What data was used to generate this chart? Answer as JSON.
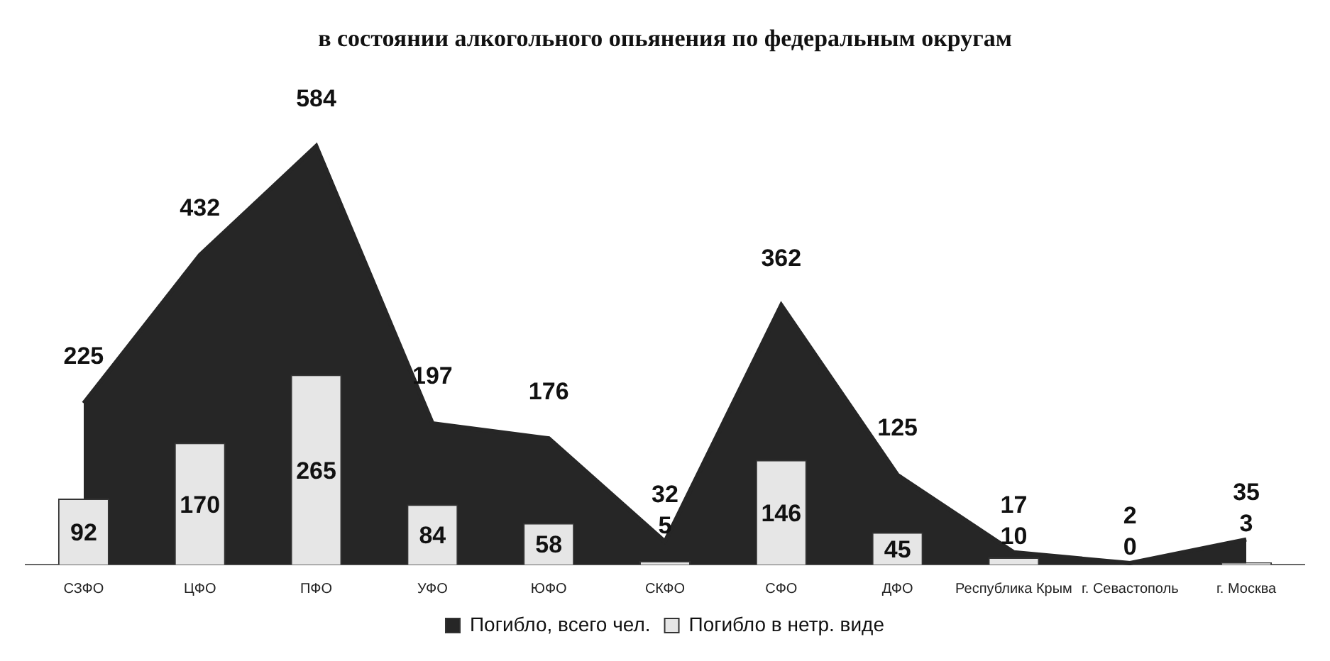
{
  "chart_data": {
    "type": "area",
    "title": "в состоянии алкогольного опьянения по федеральным округам",
    "categories": [
      "СЗФО",
      "ЦФО",
      "ПФО",
      "УФО",
      "ЮФО",
      "СКФО",
      "СФО",
      "ДФО",
      "Республика Крым",
      "г. Севастополь",
      "г. Москва"
    ],
    "series": [
      {
        "name": "Погибло, всего чел.",
        "color": "#262626",
        "values": [
          225,
          432,
          584,
          197,
          176,
          32,
          362,
          125,
          17,
          2,
          35
        ]
      },
      {
        "name": "Погибло в нетр. виде",
        "type": "bar",
        "color": "#e6e6e6",
        "values": [
          92,
          170,
          265,
          84,
          58,
          5,
          146,
          45,
          10,
          0,
          3
        ]
      }
    ],
    "data_labels": true,
    "legend": "bottom",
    "tick_labels": "x",
    "grid": false
  }
}
